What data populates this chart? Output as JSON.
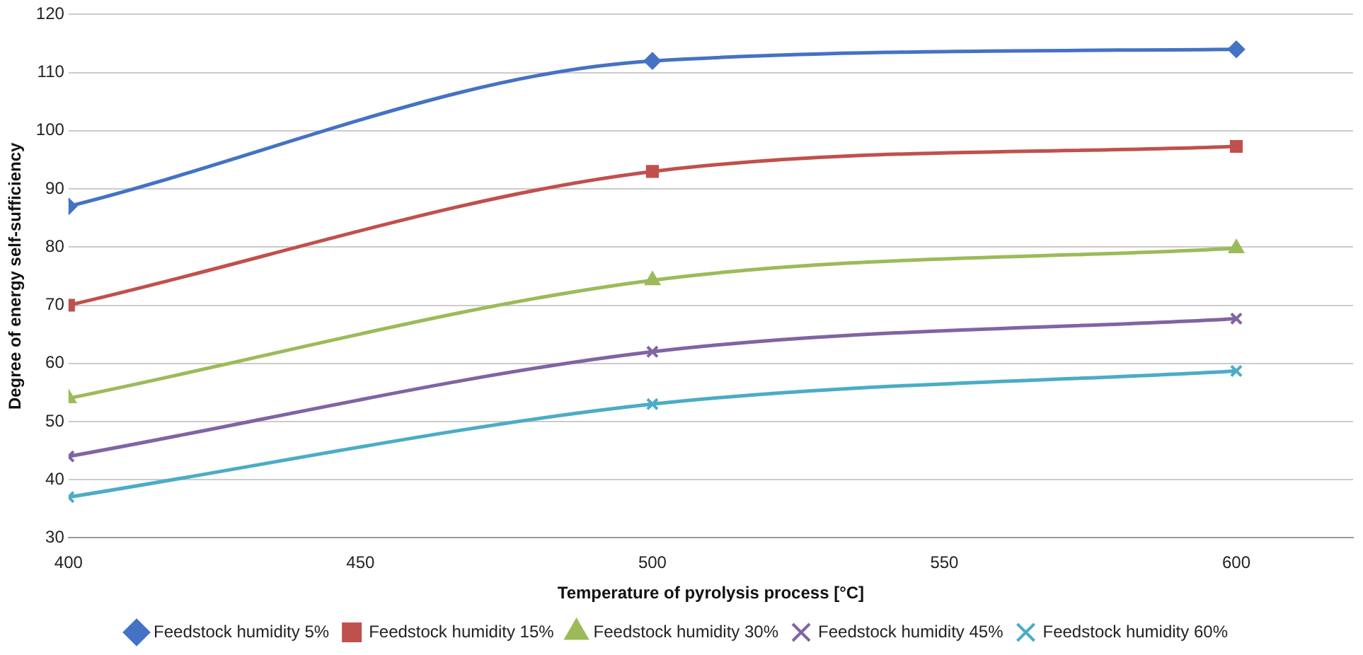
{
  "chart_data": {
    "type": "line",
    "xlabel": "Temperature of pyrolysis process [°C]",
    "ylabel": "Degree of energy self-sufficiency",
    "x": [
      400,
      500,
      600
    ],
    "series": [
      {
        "name": "Feedstock humidity 5%",
        "color": "#4472c4",
        "marker": "diamond",
        "values": [
          87,
          112,
          114
        ]
      },
      {
        "name": "Feedstock humidity 15%",
        "color": "#c0504d",
        "marker": "square",
        "values": [
          70,
          93,
          97.3
        ]
      },
      {
        "name": "Feedstock humidity 30%",
        "color": "#9bbb59",
        "marker": "triangle",
        "values": [
          54,
          74.3,
          79.8
        ]
      },
      {
        "name": "Feedstock humidity 45%",
        "color": "#8064a2",
        "marker": "cross",
        "values": [
          44,
          62,
          67.7
        ]
      },
      {
        "name": "Feedstock humidity 60%",
        "color": "#4bacc6",
        "marker": "cross",
        "values": [
          37,
          53,
          58.7
        ]
      }
    ],
    "xlim": [
      400,
      620
    ],
    "xticks": [
      400,
      450,
      500,
      550,
      600
    ],
    "ylim": [
      30,
      120
    ],
    "yticks": [
      30,
      40,
      50,
      60,
      70,
      80,
      90,
      100,
      110,
      120
    ],
    "grid": "y",
    "legend": "bottom"
  }
}
